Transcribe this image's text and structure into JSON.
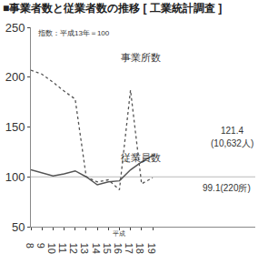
{
  "chart_data": {
    "type": "line",
    "title": "■事業者数と従業者数の推移 [ 工業統計調査 ]",
    "subtitle": "指数：平成13年＝100",
    "xlabel": "平成",
    "categories": [
      "8",
      "9",
      "10",
      "11",
      "12",
      "13",
      "14",
      "15",
      "16",
      "17",
      "18",
      "19"
    ],
    "series": [
      {
        "name": "事業所数",
        "color": "#555555",
        "line_style": "dotted",
        "values": [
          207,
          203,
          195,
          186,
          178,
          100,
          95,
          97,
          87,
          187,
          93,
          99.1
        ]
      },
      {
        "name": "従業員数",
        "color": "#555555",
        "line_style": "solid",
        "values": [
          107,
          104,
          101,
          103,
          106,
          100,
          92,
          95,
          96,
          107,
          115,
          121.4
        ]
      }
    ],
    "baseline": 100,
    "annotations": [
      {
        "text": "121.4",
        "x": "19",
        "y": 121.4
      },
      {
        "text": "(10,632人)",
        "x": "19",
        "y": 121.4
      },
      {
        "text": "99.1(220所)",
        "x": "19",
        "y": 99.1
      }
    ],
    "ylim": [
      50,
      250
    ],
    "yticks": [
      50,
      100,
      150,
      200,
      250
    ],
    "grid": false
  }
}
